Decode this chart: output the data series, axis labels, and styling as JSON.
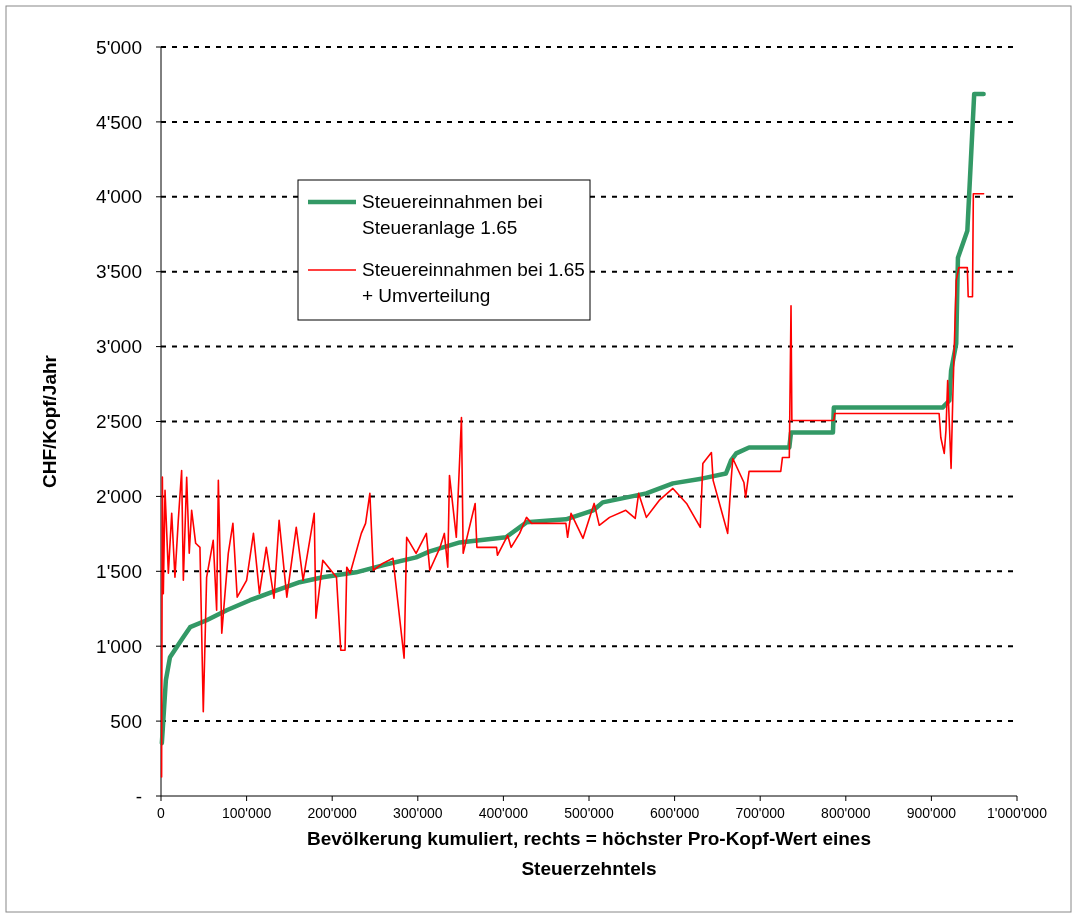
{
  "chart_data": {
    "type": "line",
    "xlabel": "Bevölkerung kumuliert, rechts = höchster Pro-Kopf-Wert eines Steuerzehntels",
    "ylabel": "CHF/Kopf/Jahr",
    "xlim": [
      0,
      1000000
    ],
    "ylim": [
      0,
      5000
    ],
    "xticks": [
      0,
      {
        "value": 100000,
        "label": "100'000"
      },
      {
        "value": 200000,
        "label": "200'000"
      },
      {
        "value": 300000,
        "label": "300'000"
      },
      {
        "value": 400000,
        "label": "400'000"
      },
      {
        "value": 500000,
        "label": "500'000"
      },
      {
        "value": 600000,
        "label": "600'000"
      },
      {
        "value": 700000,
        "label": "700'000"
      },
      {
        "value": 800000,
        "label": "800'000"
      },
      {
        "value": 900000,
        "label": "900'000"
      },
      {
        "value": 1000000,
        "label": "1'000'000"
      }
    ],
    "yticks": [
      {
        "value": 0,
        "label": "-"
      },
      500,
      {
        "value": 1000,
        "label": "1'000"
      },
      {
        "value": 1500,
        "label": "1'500"
      },
      {
        "value": 2000,
        "label": "2'000"
      },
      {
        "value": 2500,
        "label": "2'500"
      },
      {
        "value": 3000,
        "label": "3'000"
      },
      {
        "value": 3500,
        "label": "3'500"
      },
      {
        "value": 4000,
        "label": "4'000"
      },
      {
        "value": 4500,
        "label": "4'500"
      },
      {
        "value": 5000,
        "label": "5'000"
      }
    ],
    "grid": "y",
    "legend": "top left",
    "marker": "none",
    "series": [
      {
        "name": "Steuereinnahmen bei Steueranlage 1.65",
        "color": "#339966",
        "x": [
          1000,
          5700,
          10500,
          26000,
          34000,
          53300,
          76700,
          104000,
          135000,
          162000,
          189000,
          228000,
          259000,
          298000,
          314000,
          349000,
          403000,
          427000,
          473000,
          505000,
          516000,
          567000,
          598000,
          633000,
          660000,
          666000,
          672000,
          687000,
          734000,
          736000,
          785000,
          786000,
          913000,
          921000,
          923000,
          929000,
          931000,
          942000,
          950000,
          961000
        ],
        "values": [
          353,
          773,
          927,
          1060,
          1127,
          1173,
          1240,
          1307,
          1373,
          1427,
          1460,
          1493,
          1540,
          1593,
          1633,
          1693,
          1727,
          1827,
          1847,
          1907,
          1960,
          2020,
          2087,
          2120,
          2153,
          2240,
          2287,
          2327,
          2327,
          2427,
          2427,
          2593,
          2593,
          2640,
          2840,
          3020,
          3593,
          3773,
          4687,
          4687
        ]
      },
      {
        "name": "Steuereinnahmen bei 1.65 + Umverteilung",
        "color": "#ff0000",
        "x": [
          700,
          1600,
          2700,
          4700,
          8600,
          12500,
          16300,
          20200,
          24100,
          26100,
          30000,
          33000,
          35800,
          40500,
          45500,
          49400,
          53300,
          61000,
          65000,
          67000,
          71000,
          78600,
          84000,
          89000,
          100000,
          108000,
          115000,
          123000,
          132000,
          138000,
          147000,
          158000,
          166000,
          179000,
          181000,
          189000,
          205000,
          210000,
          215000,
          217000,
          221000,
          234000,
          239000,
          244000,
          248000,
          259000,
          271000,
          284000,
          287000,
          298000,
          310000,
          314000,
          326000,
          331000,
          335000,
          337000,
          345000,
          351000,
          353000,
          367000,
          369000,
          392000,
          393000,
          405000,
          409000,
          419000,
          427000,
          433000,
          473000,
          475000,
          479000,
          493000,
          506000,
          512000,
          524000,
          543000,
          554000,
          558000,
          567000,
          582000,
          598000,
          614000,
          630000,
          633000,
          643000,
          645000,
          662000,
          666000,
          668000,
          681000,
          683000,
          687000,
          724000,
          726000,
          734000,
          736000,
          737000,
          786000,
          787000,
          909000,
          911000,
          915000,
          917000,
          919000,
          923000,
          925000,
          929000,
          932000,
          942000,
          943000,
          948000,
          949000,
          961000
        ],
        "values": [
          127,
          2129,
          1351,
          2040,
          1487,
          1887,
          1460,
          1840,
          2173,
          1440,
          2127,
          1620,
          1907,
          1687,
          1660,
          562,
          1460,
          1707,
          1240,
          2107,
          1087,
          1620,
          1820,
          1327,
          1440,
          1753,
          1353,
          1660,
          1320,
          1840,
          1327,
          1793,
          1440,
          1887,
          1187,
          1573,
          1460,
          973,
          973,
          1527,
          1487,
          1753,
          1820,
          2020,
          1507,
          1553,
          1587,
          920,
          1727,
          1620,
          1753,
          1507,
          1660,
          1753,
          1527,
          2140,
          1727,
          2527,
          1620,
          1953,
          1660,
          1660,
          1607,
          1740,
          1660,
          1753,
          1860,
          1820,
          1820,
          1727,
          1887,
          1720,
          1953,
          1807,
          1860,
          1907,
          1853,
          2020,
          1860,
          1973,
          2053,
          1953,
          1793,
          2220,
          2293,
          2107,
          1753,
          2107,
          2253,
          2093,
          1993,
          2167,
          2167,
          2260,
          2260,
          3273,
          2507,
          2507,
          2553,
          2553,
          2393,
          2287,
          2440,
          2773,
          2187,
          2660,
          3440,
          3527,
          3527,
          3333,
          3333,
          4020,
          4020
        ]
      }
    ]
  }
}
